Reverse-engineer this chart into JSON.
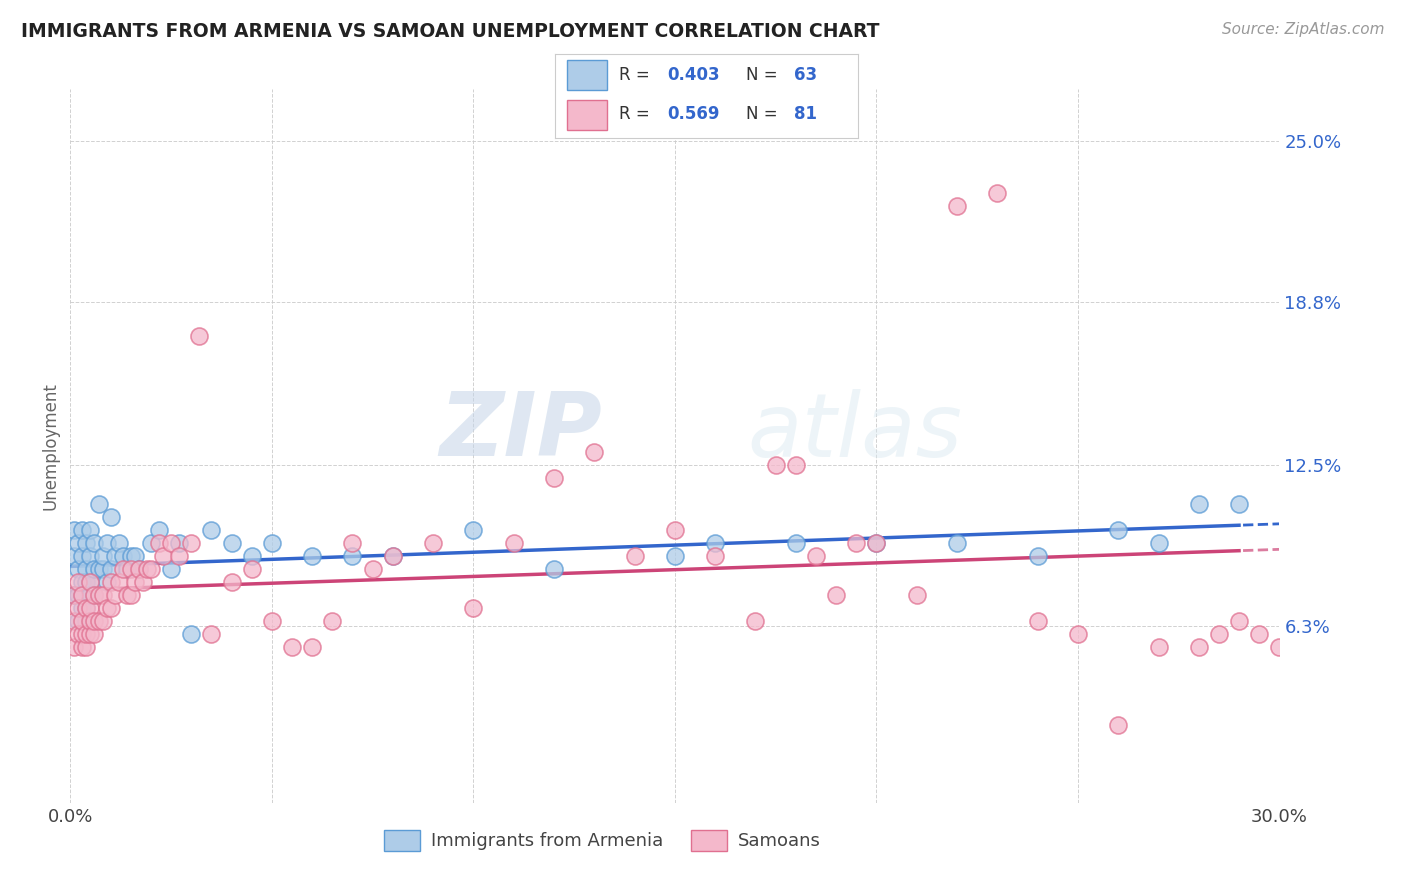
{
  "title": "IMMIGRANTS FROM ARMENIA VS SAMOAN UNEMPLOYMENT CORRELATION CHART",
  "source": "Source: ZipAtlas.com",
  "ylabel": "Unemployment",
  "xlim": [
    0.0,
    0.3
  ],
  "ylim": [
    -0.005,
    0.27
  ],
  "xticks": [
    0.0,
    0.05,
    0.1,
    0.15,
    0.2,
    0.25,
    0.3
  ],
  "ytick_positions": [
    0.063,
    0.125,
    0.188,
    0.25
  ],
  "ytick_labels": [
    "6.3%",
    "12.5%",
    "18.8%",
    "25.0%"
  ],
  "series1_name": "Immigrants from Armenia",
  "series1_color": "#aecce8",
  "series1_edge_color": "#5b9bd5",
  "series2_name": "Samoans",
  "series2_color": "#f4b8cb",
  "series2_edge_color": "#e07090",
  "blue_line_color": "#3366cc",
  "pink_line_color": "#cc4477",
  "grid_color": "#cccccc",
  "background_color": "#ffffff",
  "legend_color": "#3366cc",
  "series1_x": [
    0.001,
    0.001,
    0.001,
    0.002,
    0.002,
    0.002,
    0.002,
    0.003,
    0.003,
    0.003,
    0.003,
    0.003,
    0.004,
    0.004,
    0.004,
    0.004,
    0.004,
    0.005,
    0.005,
    0.005,
    0.005,
    0.006,
    0.006,
    0.006,
    0.007,
    0.007,
    0.008,
    0.008,
    0.009,
    0.009,
    0.01,
    0.01,
    0.011,
    0.012,
    0.013,
    0.014,
    0.015,
    0.016,
    0.017,
    0.02,
    0.022,
    0.025,
    0.027,
    0.03,
    0.035,
    0.04,
    0.045,
    0.05,
    0.06,
    0.07,
    0.08,
    0.1,
    0.12,
    0.15,
    0.16,
    0.18,
    0.2,
    0.22,
    0.24,
    0.26,
    0.27,
    0.28,
    0.29
  ],
  "series1_y": [
    0.075,
    0.09,
    0.1,
    0.065,
    0.075,
    0.085,
    0.095,
    0.07,
    0.075,
    0.08,
    0.09,
    0.1,
    0.065,
    0.07,
    0.08,
    0.085,
    0.095,
    0.075,
    0.08,
    0.09,
    0.1,
    0.075,
    0.085,
    0.095,
    0.085,
    0.11,
    0.085,
    0.09,
    0.08,
    0.095,
    0.085,
    0.105,
    0.09,
    0.095,
    0.09,
    0.085,
    0.09,
    0.09,
    0.085,
    0.095,
    0.1,
    0.085,
    0.095,
    0.06,
    0.1,
    0.095,
    0.09,
    0.095,
    0.09,
    0.09,
    0.09,
    0.1,
    0.085,
    0.09,
    0.095,
    0.095,
    0.095,
    0.095,
    0.09,
    0.1,
    0.095,
    0.11,
    0.11
  ],
  "series2_x": [
    0.001,
    0.001,
    0.001,
    0.002,
    0.002,
    0.002,
    0.003,
    0.003,
    0.003,
    0.003,
    0.004,
    0.004,
    0.004,
    0.005,
    0.005,
    0.005,
    0.005,
    0.006,
    0.006,
    0.006,
    0.007,
    0.007,
    0.008,
    0.008,
    0.009,
    0.01,
    0.01,
    0.011,
    0.012,
    0.013,
    0.014,
    0.015,
    0.015,
    0.016,
    0.017,
    0.018,
    0.019,
    0.02,
    0.022,
    0.023,
    0.025,
    0.027,
    0.03,
    0.032,
    0.035,
    0.04,
    0.045,
    0.05,
    0.055,
    0.06,
    0.065,
    0.07,
    0.075,
    0.08,
    0.09,
    0.1,
    0.11,
    0.12,
    0.13,
    0.14,
    0.15,
    0.16,
    0.17,
    0.175,
    0.18,
    0.185,
    0.19,
    0.195,
    0.2,
    0.21,
    0.22,
    0.23,
    0.24,
    0.25,
    0.26,
    0.27,
    0.28,
    0.285,
    0.29,
    0.295,
    0.3
  ],
  "series2_y": [
    0.055,
    0.065,
    0.075,
    0.06,
    0.07,
    0.08,
    0.055,
    0.06,
    0.065,
    0.075,
    0.055,
    0.06,
    0.07,
    0.06,
    0.065,
    0.07,
    0.08,
    0.06,
    0.065,
    0.075,
    0.065,
    0.075,
    0.065,
    0.075,
    0.07,
    0.07,
    0.08,
    0.075,
    0.08,
    0.085,
    0.075,
    0.075,
    0.085,
    0.08,
    0.085,
    0.08,
    0.085,
    0.085,
    0.095,
    0.09,
    0.095,
    0.09,
    0.095,
    0.175,
    0.06,
    0.08,
    0.085,
    0.065,
    0.055,
    0.055,
    0.065,
    0.095,
    0.085,
    0.09,
    0.095,
    0.07,
    0.095,
    0.12,
    0.13,
    0.09,
    0.1,
    0.09,
    0.065,
    0.125,
    0.125,
    0.09,
    0.075,
    0.095,
    0.095,
    0.075,
    0.225,
    0.23,
    0.065,
    0.06,
    0.025,
    0.055,
    0.055,
    0.06,
    0.065,
    0.06,
    0.055
  ],
  "watermark_zip": "ZIP",
  "watermark_atlas": "atlas"
}
